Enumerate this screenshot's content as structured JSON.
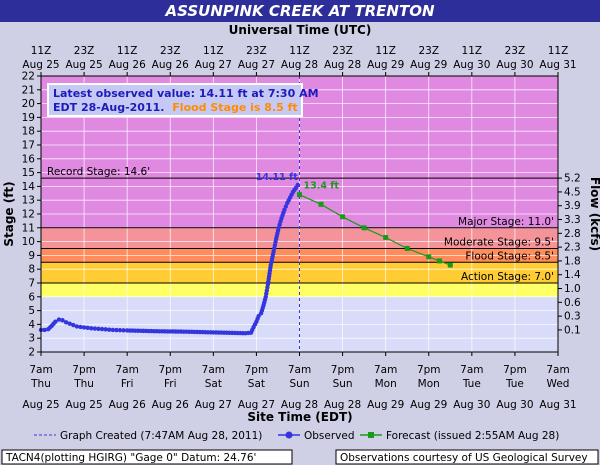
{
  "header": {
    "title": "ASSUNPINK CREEK AT TRENTON",
    "top_axis_title": "Universal Time (UTC)",
    "bottom_axis_title": "Site Time (EDT)"
  },
  "info_box": {
    "line1": "Latest observed value: 14.11 ft at 7:30 AM",
    "line2_prefix": "EDT 28-Aug-2011.",
    "line2_flood": "Flood Stage is 8.5 ft"
  },
  "footer": {
    "created": "Graph Created (7:47AM Aug 28, 2011)",
    "observed_label": "Observed",
    "forecast_label": "Forecast (issued 2:55AM Aug 28)",
    "station": "TACN4(plotting HGIRG) \"Gage 0\" Datum: 24.76'",
    "courtesy": "Observations courtesy of US Geological Survey"
  },
  "colors": {
    "record": "#e089e0",
    "major": "#f4939a",
    "moderate": "#ff8c5a",
    "flood": "#ffcc33",
    "action": "#ffff66",
    "normal": "#d8dcf8",
    "observed": "#3535e0",
    "forecast": "#1a9a1a",
    "title_bg": "#2e2e9a"
  },
  "chart_data": {
    "type": "line",
    "y_left_label": "Stage (ft)",
    "y_right_label": "Flow (kcfs)",
    "ylim": [
      2,
      22
    ],
    "y_ticks": [
      2,
      3,
      4,
      5,
      6,
      7,
      8,
      9,
      10,
      11,
      12,
      13,
      14,
      15,
      16,
      17,
      18,
      19,
      20,
      21,
      22
    ],
    "flow_ticks": [
      {
        "stage": 3.6,
        "label": "0.1"
      },
      {
        "stage": 4.6,
        "label": "0.3"
      },
      {
        "stage": 5.6,
        "label": "0.6"
      },
      {
        "stage": 6.6,
        "label": "1.0"
      },
      {
        "stage": 7.6,
        "label": "1.4"
      },
      {
        "stage": 8.6,
        "label": "1.8"
      },
      {
        "stage": 9.6,
        "label": "2.3"
      },
      {
        "stage": 10.6,
        "label": "2.8"
      },
      {
        "stage": 11.6,
        "label": "3.3"
      },
      {
        "stage": 12.6,
        "label": "3.9"
      },
      {
        "stage": 13.6,
        "label": "4.5"
      },
      {
        "stage": 14.6,
        "label": "5.2"
      }
    ],
    "x_hours_start_label": "7am Thu Aug 25",
    "x_range_hours": [
      0,
      144
    ],
    "bottom_ticks": [
      {
        "h": 0,
        "time": "7am",
        "day": "Thu",
        "date": "Aug 25"
      },
      {
        "h": 12,
        "time": "7pm",
        "day": "Thu",
        "date": "Aug 25"
      },
      {
        "h": 24,
        "time": "7am",
        "day": "Fri",
        "date": "Aug 26"
      },
      {
        "h": 36,
        "time": "7pm",
        "day": "Fri",
        "date": "Aug 26"
      },
      {
        "h": 48,
        "time": "7am",
        "day": "Sat",
        "date": "Aug 27"
      },
      {
        "h": 60,
        "time": "7pm",
        "day": "Sat",
        "date": "Aug 27"
      },
      {
        "h": 72,
        "time": "7am",
        "day": "Sun",
        "date": "Aug 28"
      },
      {
        "h": 84,
        "time": "7pm",
        "day": "Sun",
        "date": "Aug 28"
      },
      {
        "h": 96,
        "time": "7am",
        "day": "Mon",
        "date": "Aug 29"
      },
      {
        "h": 108,
        "time": "7pm",
        "day": "Mon",
        "date": "Aug 29"
      },
      {
        "h": 120,
        "time": "7am",
        "day": "Tue",
        "date": "Aug 30"
      },
      {
        "h": 132,
        "time": "7pm",
        "day": "Tue",
        "date": "Aug 30"
      },
      {
        "h": 144,
        "time": "7am",
        "day": "Wed",
        "date": "Aug 31"
      }
    ],
    "top_ticks": [
      {
        "h": 0,
        "time": "11Z",
        "date": "Aug 25"
      },
      {
        "h": 12,
        "time": "23Z",
        "date": "Aug 25"
      },
      {
        "h": 24,
        "time": "11Z",
        "date": "Aug 26"
      },
      {
        "h": 36,
        "time": "23Z",
        "date": "Aug 26"
      },
      {
        "h": 48,
        "time": "11Z",
        "date": "Aug 27"
      },
      {
        "h": 60,
        "time": "23Z",
        "date": "Aug 27"
      },
      {
        "h": 72,
        "time": "11Z",
        "date": "Aug 28"
      },
      {
        "h": 84,
        "time": "23Z",
        "date": "Aug 28"
      },
      {
        "h": 96,
        "time": "11Z",
        "date": "Aug 29"
      },
      {
        "h": 108,
        "time": "23Z",
        "date": "Aug 29"
      },
      {
        "h": 120,
        "time": "11Z",
        "date": "Aug 30"
      },
      {
        "h": 132,
        "time": "23Z",
        "date": "Aug 30"
      },
      {
        "h": 144,
        "time": "11Z",
        "date": "Aug 31"
      }
    ],
    "stages": [
      {
        "name": "Record Stage: 14.6'",
        "value": 14.6
      },
      {
        "name": "Major Stage: 11.0'",
        "value": 11.0
      },
      {
        "name": "Moderate Stage: 9.5'",
        "value": 9.5
      },
      {
        "name": "Flood Stage: 8.5'",
        "value": 8.5
      },
      {
        "name": "Action Stage: 7.0'",
        "value": 7.0
      }
    ],
    "graph_created_hour": 72,
    "series": [
      {
        "name": "Observed",
        "peak_label": "14.11 ft",
        "points": [
          [
            0,
            3.6
          ],
          [
            1,
            3.6
          ],
          [
            2,
            3.65
          ],
          [
            3,
            3.9
          ],
          [
            4,
            4.2
          ],
          [
            5,
            4.35
          ],
          [
            6,
            4.3
          ],
          [
            7,
            4.15
          ],
          [
            8,
            4.05
          ],
          [
            9,
            3.95
          ],
          [
            10,
            3.85
          ],
          [
            12,
            3.78
          ],
          [
            14,
            3.72
          ],
          [
            16,
            3.68
          ],
          [
            18,
            3.64
          ],
          [
            20,
            3.6
          ],
          [
            22,
            3.58
          ],
          [
            24,
            3.56
          ],
          [
            27,
            3.54
          ],
          [
            30,
            3.52
          ],
          [
            33,
            3.5
          ],
          [
            36,
            3.49
          ],
          [
            39,
            3.48
          ],
          [
            42,
            3.46
          ],
          [
            45,
            3.44
          ],
          [
            48,
            3.42
          ],
          [
            51,
            3.4
          ],
          [
            54,
            3.38
          ],
          [
            57,
            3.36
          ],
          [
            58.5,
            3.4
          ],
          [
            59.2,
            3.8
          ],
          [
            60,
            4.2
          ],
          [
            60.6,
            4.6
          ],
          [
            61.3,
            4.8
          ],
          [
            62,
            5.4
          ],
          [
            62.6,
            6.0
          ],
          [
            63.2,
            6.9
          ],
          [
            64,
            8.3
          ],
          [
            64.8,
            9.3
          ],
          [
            65.5,
            10.2
          ],
          [
            66.2,
            11.0
          ],
          [
            67,
            11.7
          ],
          [
            67.8,
            12.3
          ],
          [
            68.6,
            12.8
          ],
          [
            69.4,
            13.2
          ],
          [
            70.2,
            13.6
          ],
          [
            71,
            13.9
          ],
          [
            71.5,
            14.11
          ]
        ]
      },
      {
        "name": "Forecast",
        "peak_label": "13.4 ft",
        "points": [
          [
            72,
            13.4
          ],
          [
            78,
            12.7
          ],
          [
            84,
            11.8
          ],
          [
            90,
            11.0
          ],
          [
            96,
            10.3
          ],
          [
            102,
            9.5
          ],
          [
            108,
            8.9
          ],
          [
            111,
            8.6
          ],
          [
            114,
            8.3
          ]
        ]
      }
    ]
  }
}
